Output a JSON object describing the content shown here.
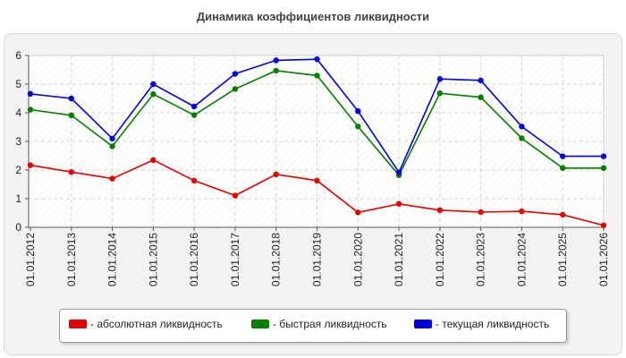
{
  "chart_data": {
    "type": "line",
    "title": "Динамика коэффициентов ликвидности",
    "xlabel": "",
    "ylabel": "",
    "ylim": [
      0,
      6
    ],
    "yticks": [
      "0",
      "1",
      "2",
      "3",
      "4",
      "5",
      "6"
    ],
    "grid": true,
    "legend_position": "bottom",
    "categories": [
      "01.01.2012",
      "01.01.2013",
      "01.01.2014",
      "01.01.2015",
      "01.01.2016",
      "01.01.2017",
      "01.01.2018",
      "01.01.2019",
      "01.01.2020",
      "01.01.2021",
      "01.01.2022",
      "01.01.2023",
      "01.01.2024",
      "01.01.2025",
      "01.01.2026"
    ],
    "series": [
      {
        "name": "- абсолютная ликвидность",
        "color": "#e60000",
        "values": [
          2.17,
          1.93,
          1.7,
          2.35,
          1.63,
          1.11,
          1.85,
          1.63,
          0.52,
          0.82,
          0.6,
          0.53,
          0.56,
          0.44,
          0.07
        ]
      },
      {
        "name": "- быстрая ликвидность",
        "color": "#007f00",
        "values": [
          4.11,
          3.91,
          2.83,
          4.65,
          3.92,
          4.83,
          5.47,
          5.3,
          3.52,
          1.82,
          4.68,
          4.54,
          3.11,
          2.07,
          2.07
        ]
      },
      {
        "name": "- текущая ликвидность",
        "color": "#0000e6",
        "values": [
          4.66,
          4.5,
          3.1,
          5.0,
          4.22,
          5.36,
          5.83,
          5.87,
          4.06,
          1.92,
          5.18,
          5.13,
          3.52,
          2.48,
          2.48
        ]
      }
    ]
  }
}
